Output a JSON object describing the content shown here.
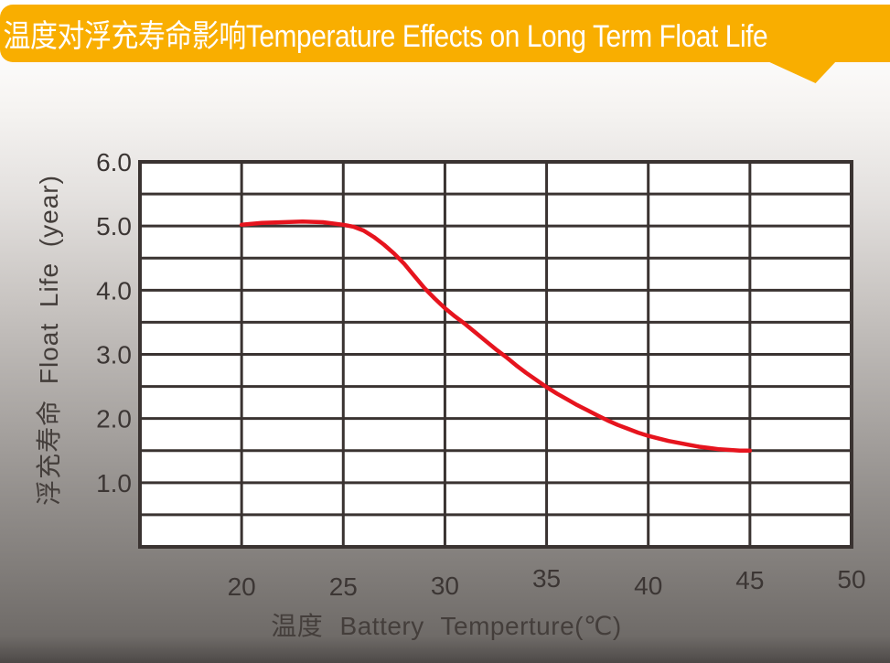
{
  "banner": {
    "title": "温度对浮充寿命影响Temperature Effects on Long Term Float Life",
    "background_color": "#F9AE00",
    "text_color": "#FFFFFF"
  },
  "chart_data": {
    "type": "line",
    "title": "温度对浮充寿命影响Temperature Effects on Long Term Float Life",
    "xlabel": "温度  Battery  Temperture(℃)",
    "ylabel": "浮充寿命  Float Life (year)",
    "xlim": [
      15,
      50
    ],
    "ylim": [
      0,
      6
    ],
    "x_grid_step": 5,
    "y_grid_step": 0.5,
    "grid": true,
    "legend": "none",
    "x_ticks": [
      {
        "value": 20,
        "label": "20"
      },
      {
        "value": 25,
        "label": "25"
      },
      {
        "value": 30,
        "label": "30"
      },
      {
        "value": 35,
        "label": "35"
      },
      {
        "value": 40,
        "label": "40"
      },
      {
        "value": 45,
        "label": "45"
      },
      {
        "value": 50,
        "label": "50"
      }
    ],
    "y_ticks": [
      {
        "value": 1,
        "label": "1.0"
      },
      {
        "value": 2,
        "label": "2.0"
      },
      {
        "value": 3,
        "label": "3.0"
      },
      {
        "value": 4,
        "label": "4.0"
      },
      {
        "value": 5,
        "label": "5.0"
      },
      {
        "value": 6,
        "label": "6.0"
      }
    ],
    "plot_background_color": "#FFFFFF",
    "grid_color": "#3A3331",
    "series": [
      {
        "name": "float-life-vs-temperature",
        "color": "#E6141E",
        "points": [
          [
            20,
            5.02
          ],
          [
            21,
            5.05
          ],
          [
            22,
            5.06
          ],
          [
            23,
            5.07
          ],
          [
            24,
            5.06
          ],
          [
            25,
            5.02
          ],
          [
            25.5,
            4.99
          ],
          [
            26,
            4.93
          ],
          [
            26.5,
            4.83
          ],
          [
            27,
            4.71
          ],
          [
            27.5,
            4.57
          ],
          [
            28,
            4.41
          ],
          [
            28.5,
            4.22
          ],
          [
            29,
            4.03
          ],
          [
            29.5,
            3.87
          ],
          [
            30,
            3.72
          ],
          [
            30.5,
            3.59
          ],
          [
            31,
            3.47
          ],
          [
            31.5,
            3.34
          ],
          [
            32,
            3.21
          ],
          [
            32.5,
            3.08
          ],
          [
            33,
            2.96
          ],
          [
            33.5,
            2.83
          ],
          [
            34,
            2.71
          ],
          [
            34.5,
            2.6
          ],
          [
            35,
            2.49
          ],
          [
            35.5,
            2.39
          ],
          [
            36,
            2.3
          ],
          [
            36.5,
            2.21
          ],
          [
            37,
            2.13
          ],
          [
            37.5,
            2.05
          ],
          [
            38,
            1.97
          ],
          [
            38.5,
            1.9
          ],
          [
            39,
            1.84
          ],
          [
            39.5,
            1.78
          ],
          [
            40,
            1.73
          ],
          [
            40.5,
            1.69
          ],
          [
            41,
            1.65
          ],
          [
            41.5,
            1.62
          ],
          [
            42,
            1.59
          ],
          [
            42.5,
            1.56
          ],
          [
            43,
            1.54
          ],
          [
            43.5,
            1.52
          ],
          [
            44,
            1.51
          ],
          [
            44.5,
            1.5
          ],
          [
            45,
            1.5
          ]
        ]
      }
    ]
  }
}
